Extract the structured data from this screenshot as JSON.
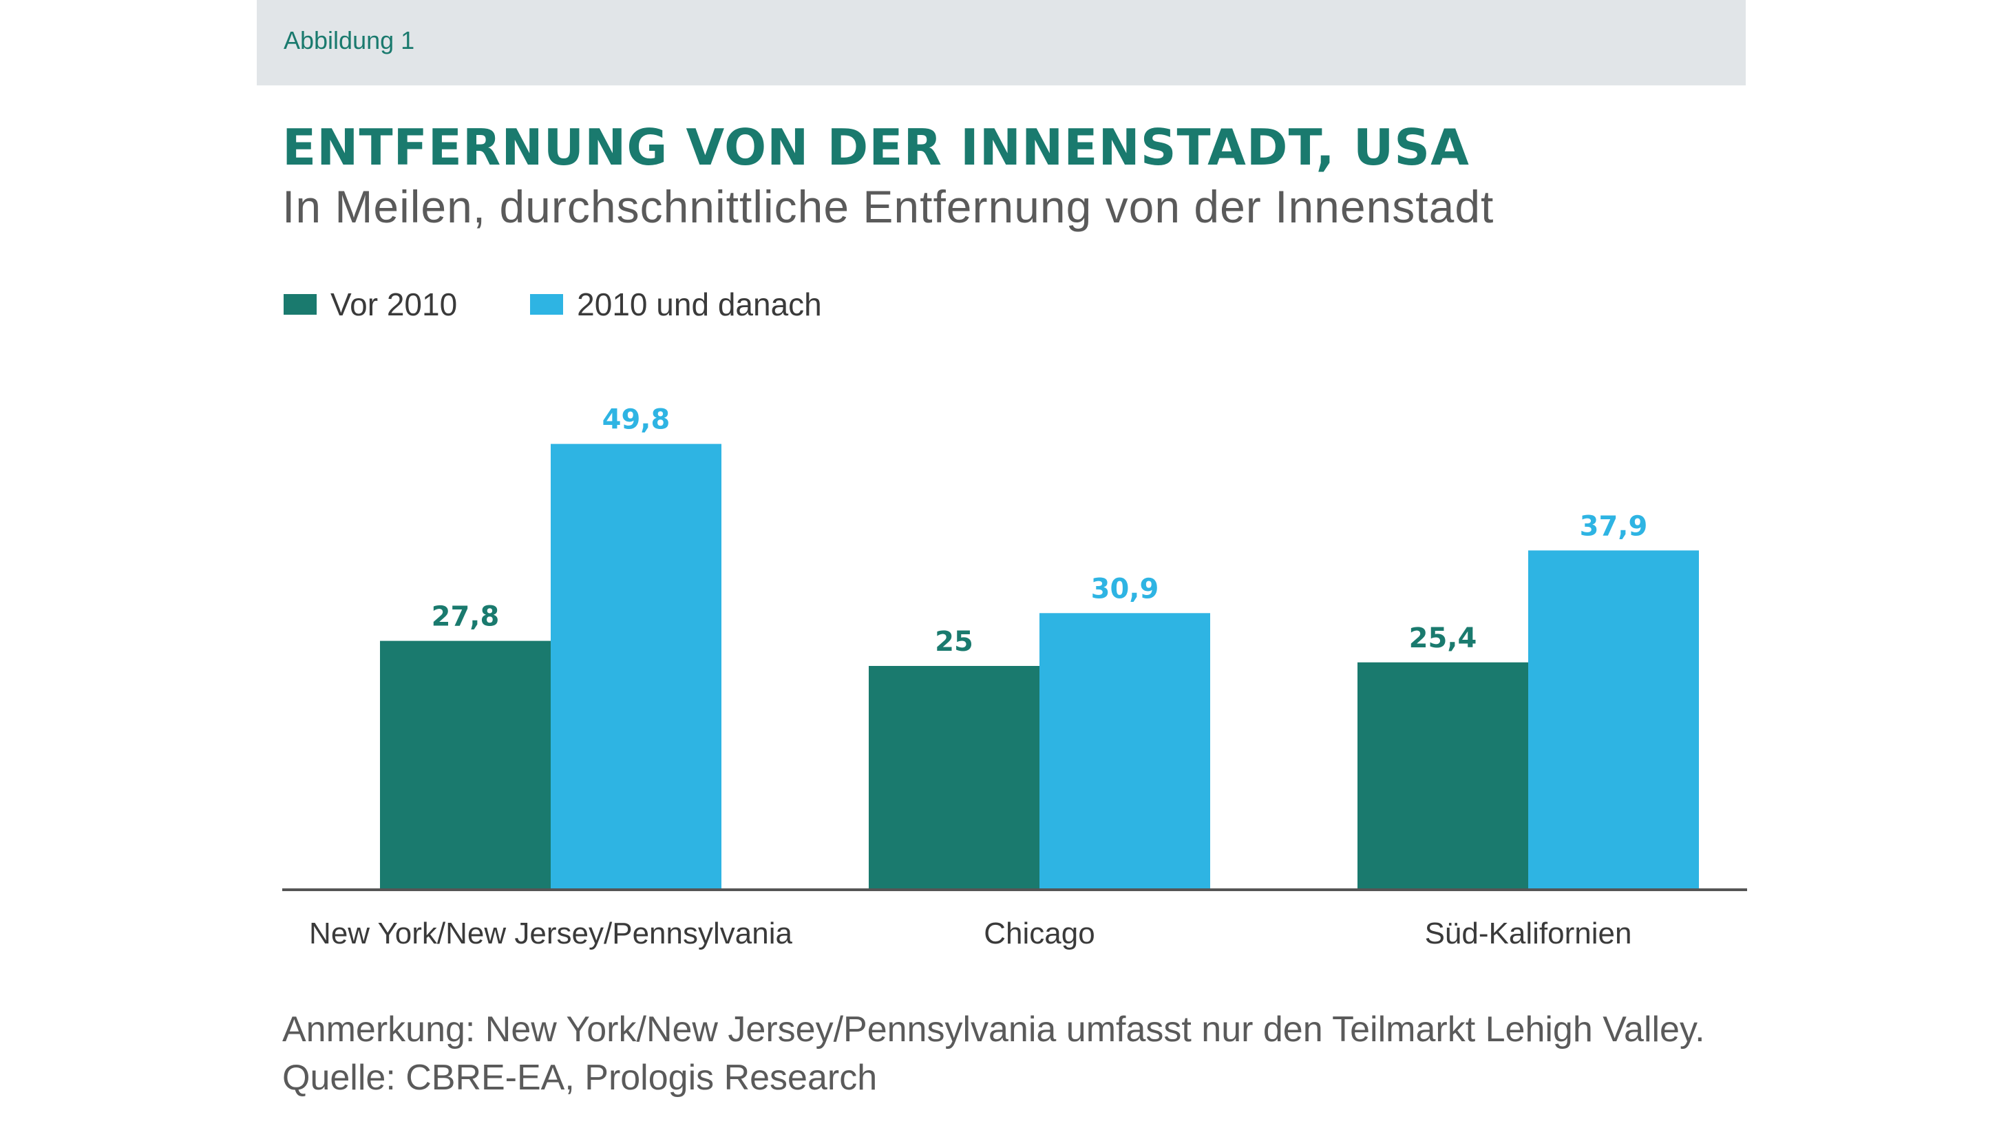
{
  "figure_label": "Abbildung 1",
  "chart_data": {
    "type": "bar",
    "title": "ENTFERNUNG VON DER INNENSTADT, USA",
    "subtitle": "In Meilen, durchschnittliche Entfernung von der Innenstadt",
    "categories": [
      "New York/New Jersey/Pennsylvania",
      "Chicago",
      "Süd-Kalifornien"
    ],
    "series": [
      {
        "name": "Vor 2010",
        "color": "#1a7a6e",
        "values": [
          27.8,
          25,
          25.4
        ],
        "labels": [
          "27,8",
          "25",
          "25,4"
        ]
      },
      {
        "name": "2010 und danach",
        "color": "#2eb4e3",
        "values": [
          49.8,
          30.9,
          37.9
        ],
        "labels": [
          "49,8",
          "30,9",
          "37,9"
        ]
      }
    ],
    "xlabel": "",
    "ylabel": "",
    "ylim": [
      0,
      50
    ],
    "grid": false,
    "legend": "top-left"
  },
  "footnote": {
    "note": "Anmerkung: New York/New Jersey/Pennsylvania umfasst nur den Teilmarkt Lehigh Valley.",
    "source": "Quelle: CBRE-EA, Prologis Research"
  },
  "colors": {
    "axis": "#555555",
    "category_text": "#3a3a3a"
  }
}
